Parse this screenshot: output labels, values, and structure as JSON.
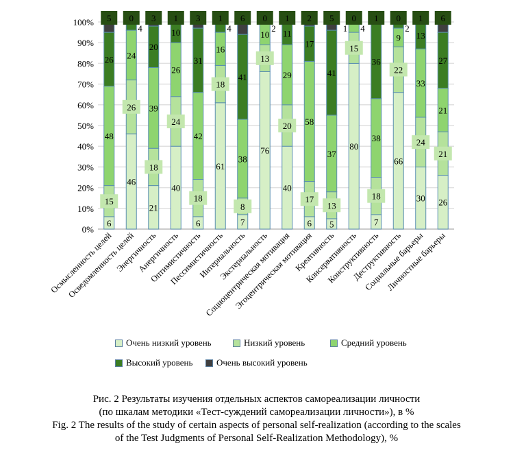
{
  "chart_data": {
    "type": "bar",
    "stacked": true,
    "ylim": [
      0,
      100
    ],
    "yticks": [
      "0%",
      "10%",
      "20%",
      "30%",
      "40%",
      "50%",
      "60%",
      "70%",
      "80%",
      "90%",
      "100%"
    ],
    "grid": true,
    "legend_position": "bottom",
    "categories": [
      "Осмысленность целей",
      "Осведомленность целей",
      "Энергичность",
      "Анергичность",
      "Оптимистичность",
      "Пессимистичность",
      "Интернальность",
      "Экстернальность",
      "Социоцентрическая мотивация",
      "Эгоцентрическая мотивация",
      "Креативность",
      "Консервативность",
      "Конструктивность",
      "Деструктивность",
      "Социальные барьеры",
      "Личностные барьеры"
    ],
    "series": [
      {
        "name": "Очень низкий уровень",
        "color": "#d6efc6",
        "values": [
          6,
          46,
          21,
          40,
          6,
          61,
          7,
          76,
          40,
          6,
          5,
          80,
          7,
          66,
          30,
          26
        ]
      },
      {
        "name": "Низкий уровень",
        "color": "#b5e29c",
        "values": [
          15,
          26,
          18,
          24,
          18,
          18,
          8,
          13,
          20,
          17,
          13,
          15,
          18,
          22,
          24,
          21
        ]
      },
      {
        "name": "Средний уровень",
        "color": "#8ed46f",
        "values": [
          48,
          24,
          39,
          26,
          42,
          16,
          38,
          10,
          29,
          58,
          37,
          4,
          38,
          9,
          33,
          21
        ]
      },
      {
        "name": "Высокий уровень",
        "color": "#3b7d23",
        "values": [
          26,
          4,
          20,
          10,
          31,
          4,
          41,
          2,
          11,
          17,
          41,
          1,
          36,
          2,
          13,
          27
        ]
      },
      {
        "name": "Очень высокий уровень",
        "color": "#3f3f3f",
        "values": [
          5,
          0,
          3,
          1,
          3,
          1,
          6,
          0,
          1,
          2,
          5,
          0,
          1,
          0,
          1,
          6
        ]
      }
    ]
  },
  "caption": {
    "ru_line1": "Рис. 2 Результаты изучения отдельных аспектов самореализации личности",
    "ru_line2": "(по шкалам методики «Тест-суждений самореализации личности»), в %",
    "en_line1": "Fig. 2 The results of the study of certain aspects of personal self-realization (according to the scales",
    "en_line2": "of the Test Judgments of Personal Self-Realization Methodology), %"
  }
}
